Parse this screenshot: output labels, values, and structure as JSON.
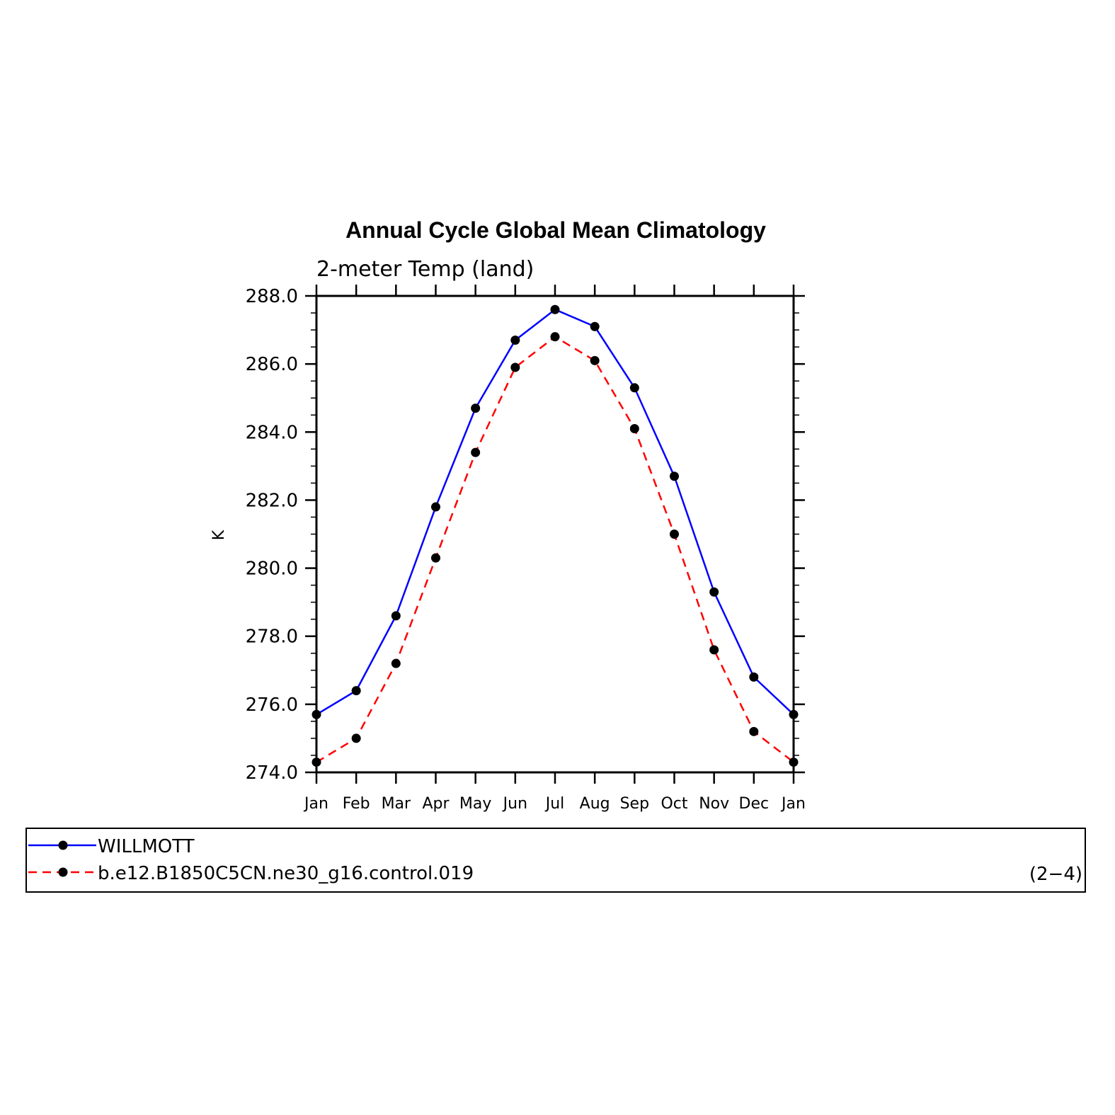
{
  "chart_data": {
    "type": "line",
    "title": "Annual Cycle Global Mean Climatology",
    "subtitle": "2-meter Temp (land)",
    "ylabel": "K",
    "xlabel": "",
    "categories": [
      "Jan",
      "Feb",
      "Mar",
      "Apr",
      "May",
      "Jun",
      "Jul",
      "Aug",
      "Sep",
      "Oct",
      "Nov",
      "Dec",
      "Jan"
    ],
    "ylim": [
      274.0,
      288.0
    ],
    "yticks": [
      "274.0",
      "276.0",
      "278.0",
      "280.0",
      "282.0",
      "284.0",
      "286.0",
      "288.0"
    ],
    "grid": false,
    "legend_position": "bottom",
    "series": [
      {
        "name": "WILLMOTT",
        "color": "#0000ff",
        "dash": "solid",
        "marker": "filled-circle",
        "values": [
          275.7,
          276.4,
          278.6,
          281.8,
          284.7,
          286.7,
          287.6,
          287.1,
          285.3,
          282.7,
          279.3,
          276.8,
          275.7
        ]
      },
      {
        "name": "b.e12.B1850C5CN.ne30_g16.control.019",
        "color": "#ff0000",
        "dash": "dashed",
        "marker": "filled-circle",
        "values": [
          274.3,
          275.0,
          277.2,
          280.3,
          283.4,
          285.9,
          286.8,
          286.1,
          284.1,
          281.0,
          277.6,
          275.2,
          274.3
        ]
      }
    ],
    "annotation": "(2−4)"
  }
}
